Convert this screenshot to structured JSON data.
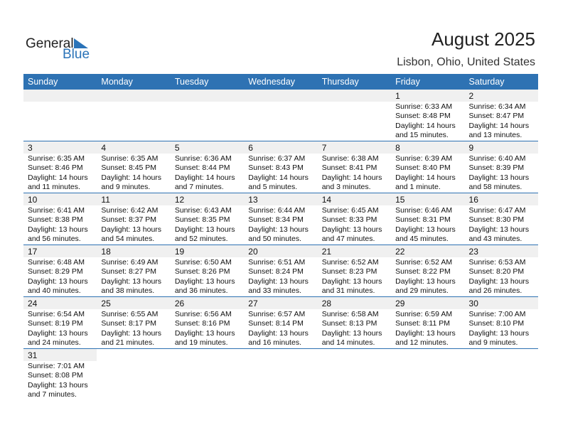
{
  "logo": {
    "text1": "General",
    "text2": "Blue"
  },
  "title": "August 2025",
  "location": "Lisbon, Ohio, United States",
  "days": [
    "Sunday",
    "Monday",
    "Tuesday",
    "Wednesday",
    "Thursday",
    "Friday",
    "Saturday"
  ],
  "weeks": [
    [
      null,
      null,
      null,
      null,
      null,
      {
        "d": "1",
        "sr": "Sunrise: 6:33 AM",
        "ss": "Sunset: 8:48 PM",
        "dl": "Daylight: 14 hours",
        "dm": "and 15 minutes."
      },
      {
        "d": "2",
        "sr": "Sunrise: 6:34 AM",
        "ss": "Sunset: 8:47 PM",
        "dl": "Daylight: 14 hours",
        "dm": "and 13 minutes."
      }
    ],
    [
      {
        "d": "3",
        "sr": "Sunrise: 6:35 AM",
        "ss": "Sunset: 8:46 PM",
        "dl": "Daylight: 14 hours",
        "dm": "and 11 minutes."
      },
      {
        "d": "4",
        "sr": "Sunrise: 6:35 AM",
        "ss": "Sunset: 8:45 PM",
        "dl": "Daylight: 14 hours",
        "dm": "and 9 minutes."
      },
      {
        "d": "5",
        "sr": "Sunrise: 6:36 AM",
        "ss": "Sunset: 8:44 PM",
        "dl": "Daylight: 14 hours",
        "dm": "and 7 minutes."
      },
      {
        "d": "6",
        "sr": "Sunrise: 6:37 AM",
        "ss": "Sunset: 8:43 PM",
        "dl": "Daylight: 14 hours",
        "dm": "and 5 minutes."
      },
      {
        "d": "7",
        "sr": "Sunrise: 6:38 AM",
        "ss": "Sunset: 8:41 PM",
        "dl": "Daylight: 14 hours",
        "dm": "and 3 minutes."
      },
      {
        "d": "8",
        "sr": "Sunrise: 6:39 AM",
        "ss": "Sunset: 8:40 PM",
        "dl": "Daylight: 14 hours",
        "dm": "and 1 minute."
      },
      {
        "d": "9",
        "sr": "Sunrise: 6:40 AM",
        "ss": "Sunset: 8:39 PM",
        "dl": "Daylight: 13 hours",
        "dm": "and 58 minutes."
      }
    ],
    [
      {
        "d": "10",
        "sr": "Sunrise: 6:41 AM",
        "ss": "Sunset: 8:38 PM",
        "dl": "Daylight: 13 hours",
        "dm": "and 56 minutes."
      },
      {
        "d": "11",
        "sr": "Sunrise: 6:42 AM",
        "ss": "Sunset: 8:37 PM",
        "dl": "Daylight: 13 hours",
        "dm": "and 54 minutes."
      },
      {
        "d": "12",
        "sr": "Sunrise: 6:43 AM",
        "ss": "Sunset: 8:35 PM",
        "dl": "Daylight: 13 hours",
        "dm": "and 52 minutes."
      },
      {
        "d": "13",
        "sr": "Sunrise: 6:44 AM",
        "ss": "Sunset: 8:34 PM",
        "dl": "Daylight: 13 hours",
        "dm": "and 50 minutes."
      },
      {
        "d": "14",
        "sr": "Sunrise: 6:45 AM",
        "ss": "Sunset: 8:33 PM",
        "dl": "Daylight: 13 hours",
        "dm": "and 47 minutes."
      },
      {
        "d": "15",
        "sr": "Sunrise: 6:46 AM",
        "ss": "Sunset: 8:31 PM",
        "dl": "Daylight: 13 hours",
        "dm": "and 45 minutes."
      },
      {
        "d": "16",
        "sr": "Sunrise: 6:47 AM",
        "ss": "Sunset: 8:30 PM",
        "dl": "Daylight: 13 hours",
        "dm": "and 43 minutes."
      }
    ],
    [
      {
        "d": "17",
        "sr": "Sunrise: 6:48 AM",
        "ss": "Sunset: 8:29 PM",
        "dl": "Daylight: 13 hours",
        "dm": "and 40 minutes."
      },
      {
        "d": "18",
        "sr": "Sunrise: 6:49 AM",
        "ss": "Sunset: 8:27 PM",
        "dl": "Daylight: 13 hours",
        "dm": "and 38 minutes."
      },
      {
        "d": "19",
        "sr": "Sunrise: 6:50 AM",
        "ss": "Sunset: 8:26 PM",
        "dl": "Daylight: 13 hours",
        "dm": "and 36 minutes."
      },
      {
        "d": "20",
        "sr": "Sunrise: 6:51 AM",
        "ss": "Sunset: 8:24 PM",
        "dl": "Daylight: 13 hours",
        "dm": "and 33 minutes."
      },
      {
        "d": "21",
        "sr": "Sunrise: 6:52 AM",
        "ss": "Sunset: 8:23 PM",
        "dl": "Daylight: 13 hours",
        "dm": "and 31 minutes."
      },
      {
        "d": "22",
        "sr": "Sunrise: 6:52 AM",
        "ss": "Sunset: 8:22 PM",
        "dl": "Daylight: 13 hours",
        "dm": "and 29 minutes."
      },
      {
        "d": "23",
        "sr": "Sunrise: 6:53 AM",
        "ss": "Sunset: 8:20 PM",
        "dl": "Daylight: 13 hours",
        "dm": "and 26 minutes."
      }
    ],
    [
      {
        "d": "24",
        "sr": "Sunrise: 6:54 AM",
        "ss": "Sunset: 8:19 PM",
        "dl": "Daylight: 13 hours",
        "dm": "and 24 minutes."
      },
      {
        "d": "25",
        "sr": "Sunrise: 6:55 AM",
        "ss": "Sunset: 8:17 PM",
        "dl": "Daylight: 13 hours",
        "dm": "and 21 minutes."
      },
      {
        "d": "26",
        "sr": "Sunrise: 6:56 AM",
        "ss": "Sunset: 8:16 PM",
        "dl": "Daylight: 13 hours",
        "dm": "and 19 minutes."
      },
      {
        "d": "27",
        "sr": "Sunrise: 6:57 AM",
        "ss": "Sunset: 8:14 PM",
        "dl": "Daylight: 13 hours",
        "dm": "and 16 minutes."
      },
      {
        "d": "28",
        "sr": "Sunrise: 6:58 AM",
        "ss": "Sunset: 8:13 PM",
        "dl": "Daylight: 13 hours",
        "dm": "and 14 minutes."
      },
      {
        "d": "29",
        "sr": "Sunrise: 6:59 AM",
        "ss": "Sunset: 8:11 PM",
        "dl": "Daylight: 13 hours",
        "dm": "and 12 minutes."
      },
      {
        "d": "30",
        "sr": "Sunrise: 7:00 AM",
        "ss": "Sunset: 8:10 PM",
        "dl": "Daylight: 13 hours",
        "dm": "and 9 minutes."
      }
    ],
    [
      {
        "d": "31",
        "sr": "Sunrise: 7:01 AM",
        "ss": "Sunset: 8:08 PM",
        "dl": "Daylight: 13 hours",
        "dm": "and 7 minutes."
      },
      null,
      null,
      null,
      null,
      null,
      null
    ]
  ],
  "colors": {
    "accent": "#2e72b3",
    "band": "#f0f0f0"
  }
}
